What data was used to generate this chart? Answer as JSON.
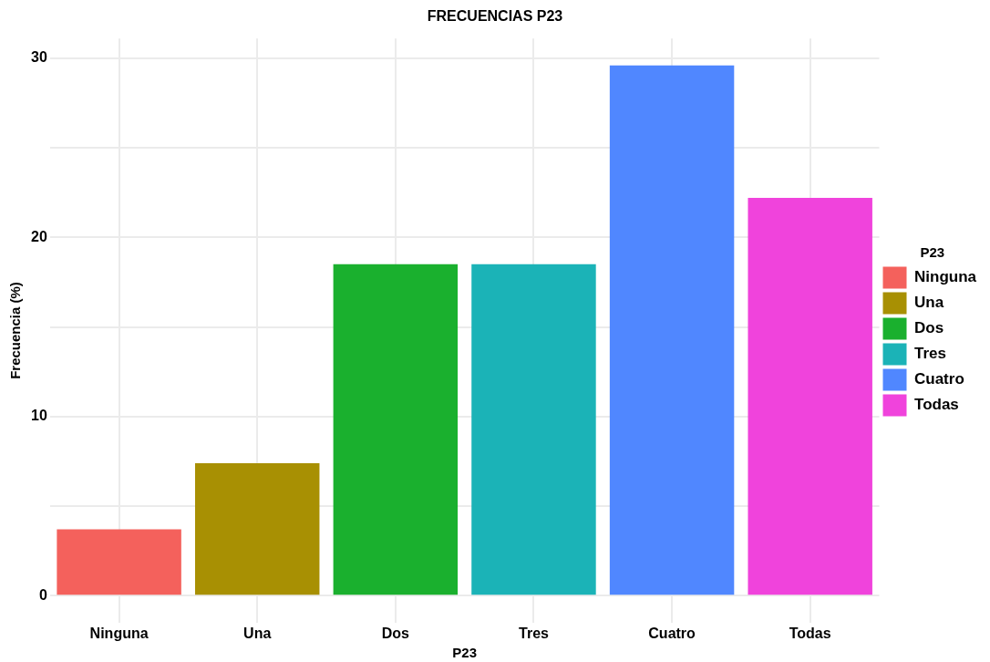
{
  "chart_data": {
    "type": "bar",
    "title": "FRECUENCIAS P23",
    "xlabel": "P23",
    "ylabel": "Frecuencia (%)",
    "legend_title": "P23",
    "categories": [
      "Ninguna",
      "Una",
      "Dos",
      "Tres",
      "Cuatro",
      "Todas"
    ],
    "series": [
      {
        "name": "Ninguna",
        "color": "#f4615c",
        "values": [
          3.7,
          null,
          null,
          null,
          null,
          null
        ]
      },
      {
        "name": "Una",
        "color": "#a89003",
        "values": [
          null,
          7.4,
          null,
          null,
          null,
          null
        ]
      },
      {
        "name": "Dos",
        "color": "#1ab02e",
        "values": [
          null,
          null,
          18.5,
          null,
          null,
          null
        ]
      },
      {
        "name": "Tres",
        "color": "#1bb3b7",
        "values": [
          null,
          null,
          null,
          18.5,
          null,
          null
        ]
      },
      {
        "name": "Cuatro",
        "color": "#5087ff",
        "values": [
          null,
          null,
          null,
          null,
          29.6,
          null
        ]
      },
      {
        "name": "Todas",
        "color": "#f043dc",
        "values": [
          null,
          null,
          null,
          null,
          null,
          22.2
        ]
      }
    ],
    "ylim": [
      -1.5,
      31.1
    ],
    "yticks": [
      0,
      {
        "value": 5,
        "label": null
      },
      10,
      {
        "value": 15,
        "label": null
      },
      20,
      {
        "value": 25,
        "label": null
      },
      30
    ],
    "grid": true,
    "legend": "right"
  }
}
